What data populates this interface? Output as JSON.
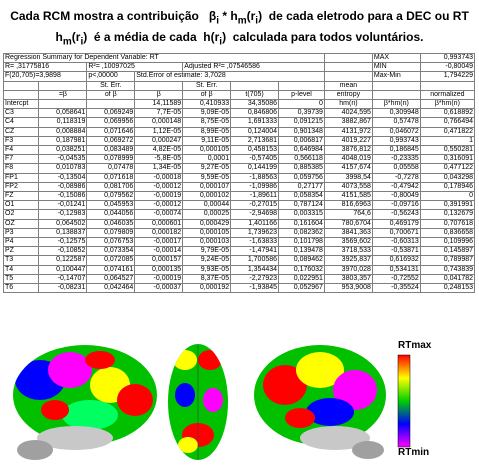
{
  "caption": {
    "line1_a": "Cada RCM mostra a contribuição",
    "line1_beta": "β",
    "line1_sub_i": "i",
    "line1_star": "*",
    "line1_h": "h",
    "line1_sub_m": "m",
    "line1_r": "(r",
    "line1_ri": "i",
    "line1_close": ")",
    "line1_b": "de cada eletrodo para  a DEC ou RT",
    "line2_h": "h",
    "line2_sub_m": "m",
    "line2_r": "(r",
    "line2_ri": "i",
    "line2_close": ")",
    "line2_a": "é a média de cada",
    "line2_h2": "h(r",
    "line2_ri2": "i",
    "line2_close2": ")",
    "line2_b": "calculada para todos voluntários."
  },
  "summary": {
    "title": "Regression Summary for Dependent Variable: RT",
    "r": "R= ,31775816",
    "r2": "R²= ,10097025",
    "adj_r2": "Adjusted R²= ,07546586",
    "f": "F(20,705)=3,9898",
    "p": "p<,00000",
    "std_err": "Std.Error of estimate: 3,7028",
    "max_label": "MAX",
    "max_value": "0,993743",
    "min_label": "MIN",
    "min_value": "-0,80049",
    "maxmin_label": "Max-Min",
    "maxmin_value": "1,794229"
  },
  "headers": {
    "row1": [
      "",
      "St. Err.",
      "",
      "St. Err.",
      "",
      "",
      "mean",
      "",
      "normalized"
    ],
    "row2": [
      "",
      "=β",
      "of β",
      "β",
      "of β",
      "t(705)",
      "p-level",
      "entropy",
      "",
      "normalized"
    ],
    "row3": [
      "Intercpt",
      "",
      "",
      "14,11589",
      "0,410933",
      "34,35086",
      "0",
      "hm(ri)",
      "β*hm(ri)",
      "β*hm(ri)"
    ]
  },
  "rows": [
    [
      "C3",
      "0,058641",
      "0,069249",
      "7,7E-05",
      "9,09E-05",
      "0,846806",
      "0,39739",
      "4024,595",
      "0,309948",
      "0,618892"
    ],
    [
      "C4",
      "0,118319",
      "0,069956",
      "0,000148",
      "8,75E-05",
      "1,691333",
      "0,091215",
      "3882,867",
      "0,57478",
      "0,766494"
    ],
    [
      "CZ",
      "0,008884",
      "0,071646",
      "1,12E-05",
      "8,99E-05",
      "0,124004",
      "0,901348",
      "4131,972",
      "0,046072",
      "0,471822"
    ],
    [
      "F3",
      "0,187981",
      "0,069272",
      "0,000247",
      "9,11E-05",
      "2,713681",
      "0,006817",
      "4019,227",
      "0,993743",
      "1"
    ],
    [
      "F4",
      "0,038251",
      "0,083489",
      "4,82E-05",
      "0,000105",
      "0,458153",
      "0,646984",
      "3876,812",
      "0,186845",
      "0,550281"
    ],
    [
      "F7",
      "-0,04535",
      "0,078999",
      "-5,8E-05",
      "0,0001",
      "-0,57405",
      "0,566118",
      "4048,019",
      "-0,23335",
      "0,316091"
    ],
    [
      "F8",
      "0,010783",
      "0,07478",
      "1,34E-05",
      "9,27E-05",
      "0,144199",
      "0,885385",
      "4157,674",
      "0,05558",
      "0,477122"
    ],
    [
      "FP1",
      "-0,13504",
      "0,071618",
      "-0,00018",
      "9,59E-05",
      "-1,88563",
      "0,059756",
      "3998,54",
      "-0,7278",
      "0,043298"
    ],
    [
      "FP2",
      "-0,08986",
      "0,081706",
      "-0,00012",
      "0,000107",
      "-1,09986",
      "0,27177",
      "4073,558",
      "-0,47942",
      "0,178946"
    ],
    [
      "FZ",
      "-0,15086",
      "0,079562",
      "-0,00019",
      "0,000102",
      "-1,89611",
      "0,058354",
      "4151,585",
      "-0,80049",
      "0"
    ],
    [
      "O1",
      "-0,01241",
      "0,045953",
      "-0,00012",
      "0,00044",
      "-0,27015",
      "0,787124",
      "816,6963",
      "-0,09716",
      "0,391991"
    ],
    [
      "O2",
      "-0,12983",
      "0,044056",
      "-0,00074",
      "0,00025",
      "-2,94698",
      "0,003315",
      "764,6",
      "-0,56243",
      "0,132679"
    ],
    [
      "OZ",
      "0,064502",
      "0,046035",
      "0,000601",
      "0,000429",
      "1,401166",
      "0,161604",
      "780,6704",
      "0,469179",
      "0,707618"
    ],
    [
      "P3",
      "0,138837",
      "0,079809",
      "0,000182",
      "0,000105",
      "1,739623",
      "0,082362",
      "3841,363",
      "0,700671",
      "0,836658"
    ],
    [
      "P4",
      "-0,12575",
      "0,076753",
      "-0,00017",
      "0,000103",
      "-1,63833",
      "0,101798",
      "3569,602",
      "-0,60313",
      "0,109996"
    ],
    [
      "PZ",
      "-0,10852",
      "0,073354",
      "-0,00014",
      "9,79E-05",
      "-1,47941",
      "0,139478",
      "3718,533",
      "-0,53871",
      "0,145897"
    ],
    [
      "T3",
      "0,122587",
      "0,072085",
      "0,000157",
      "9,24E-05",
      "1,700586",
      "0,089462",
      "3925,837",
      "0,616932",
      "0,789987"
    ],
    [
      "T4",
      "0,100447",
      "0,074161",
      "0,000135",
      "9,93E-05",
      "1,354434",
      "0,176032",
      "3970,028",
      "0,534131",
      "0,743839"
    ],
    [
      "T5",
      "-0,14707",
      "0,064527",
      "-0,00019",
      "8,37E-05",
      "-2,27923",
      "0,022951",
      "3803,357",
      "-0,72552",
      "0,041782"
    ],
    [
      "T6",
      "-0,08231",
      "0,042464",
      "-0,00037",
      "0,000192",
      "-1,93845",
      "0,052967",
      "953,9008",
      "-0,35524",
      "0,248153"
    ]
  ],
  "legend": {
    "max_label": "RTmax",
    "min_label": "RTmin"
  },
  "colors": {
    "low": "#ff00ff",
    "mid_low": "#0000ff",
    "mid": "#00d000",
    "mid_high": "#ffff00",
    "high": "#ff0000"
  }
}
